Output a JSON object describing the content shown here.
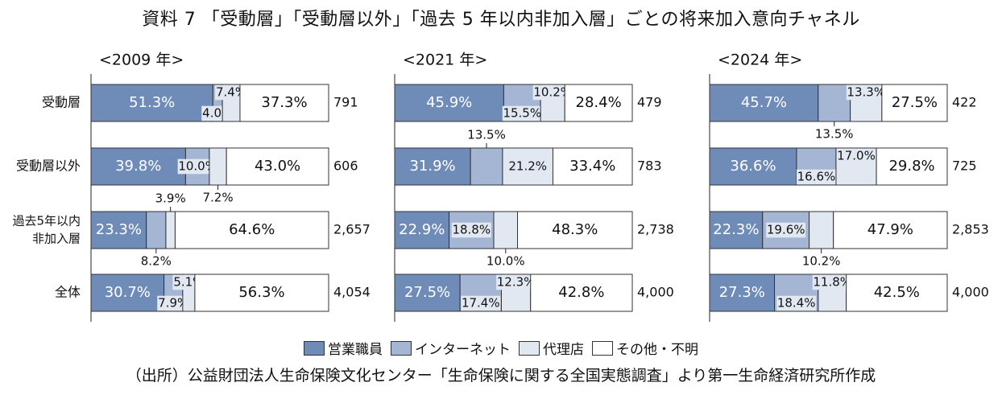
{
  "title": "資料 7 「受動層」「受動層以外」「過去 5 年以内非加入層」ごとの将来加入意向チャネル",
  "source": "（出所）公益財団法人生命保険文化センター「生命保険に関する全国実態調査」より第一生命経済研究所作成",
  "colors": {
    "sales": "#6f8cb8",
    "internet": "#a4b6d3",
    "agency": "#e2e8f2",
    "other": "#ffffff",
    "border": "#333333",
    "label_bg": "#e2e8f2"
  },
  "legend": [
    {
      "name": "営業職員",
      "color": "#6f8cb8"
    },
    {
      "name": "インターネット",
      "color": "#a4b6d3"
    },
    {
      "name": "代理店",
      "color": "#e2e8f2"
    },
    {
      "name": "その他・不明",
      "color": "#ffffff"
    }
  ],
  "row_labels": [
    [
      "受動層"
    ],
    [
      "受動層以外"
    ],
    [
      "過去5年以内",
      "非加入層"
    ],
    [
      "全体"
    ]
  ],
  "chart_data": [
    {
      "type": "bar",
      "stacked": true,
      "orientation": "horizontal",
      "title": "<2009 年>",
      "categories": [
        "受動層",
        "受動層以外",
        "過去5年以内非加入層",
        "全体"
      ],
      "series": [
        {
          "name": "営業職員",
          "values": [
            51.3,
            39.8,
            23.3,
            30.7
          ]
        },
        {
          "name": "インターネット",
          "values": [
            4.0,
            10.0,
            8.2,
            7.9
          ]
        },
        {
          "name": "代理店",
          "values": [
            7.4,
            7.2,
            3.9,
            5.1
          ]
        },
        {
          "name": "その他・不明",
          "values": [
            37.3,
            43.0,
            64.6,
            56.3
          ]
        }
      ],
      "n": [
        "791",
        "606",
        "2,657",
        "4,054"
      ],
      "xlim": [
        0,
        100
      ]
    },
    {
      "type": "bar",
      "stacked": true,
      "orientation": "horizontal",
      "title": "<2021 年>",
      "categories": [
        "受動層",
        "受動層以外",
        "過去5年以内非加入層",
        "全体"
      ],
      "series": [
        {
          "name": "営業職員",
          "values": [
            45.9,
            31.9,
            22.9,
            27.5
          ]
        },
        {
          "name": "インターネット",
          "values": [
            15.5,
            13.5,
            18.8,
            17.4
          ]
        },
        {
          "name": "代理店",
          "values": [
            10.2,
            21.2,
            10.0,
            12.3
          ]
        },
        {
          "name": "その他・不明",
          "values": [
            28.4,
            33.4,
            48.3,
            42.8
          ]
        }
      ],
      "n": [
        "479",
        "783",
        "2,738",
        "4,000"
      ],
      "xlim": [
        0,
        100
      ]
    },
    {
      "type": "bar",
      "stacked": true,
      "orientation": "horizontal",
      "title": "<2024 年>",
      "categories": [
        "受動層",
        "受動層以外",
        "過去5年以内非加入層",
        "全体"
      ],
      "series": [
        {
          "name": "営業職員",
          "values": [
            45.7,
            36.6,
            22.3,
            27.3
          ]
        },
        {
          "name": "インターネット",
          "values": [
            13.5,
            16.6,
            19.6,
            18.4
          ]
        },
        {
          "name": "代理店",
          "values": [
            13.3,
            17.0,
            10.2,
            11.8
          ]
        },
        {
          "name": "その他・不明",
          "values": [
            27.5,
            29.8,
            47.9,
            42.5
          ]
        }
      ],
      "n": [
        "422",
        "725",
        "2,853",
        "4,000"
      ],
      "xlim": [
        0,
        100
      ]
    }
  ],
  "labels": [
    {
      "texts": [
        [
          "51.3%",
          "4.0%",
          "7.4%",
          "37.3%"
        ],
        [
          "39.8%",
          "10.0%",
          "7.2%",
          "43.0%"
        ],
        [
          "23.3%",
          "8.2%",
          "3.9%",
          "64.6%"
        ],
        [
          "30.7%",
          "7.9%",
          "5.1%",
          "56.3%"
        ]
      ]
    },
    {
      "texts": [
        [
          "45.9%",
          "15.5%",
          "10.2%",
          "28.4%"
        ],
        [
          "31.9%",
          "13.5%",
          "21.2%",
          "33.4%"
        ],
        [
          "22.9%",
          "18.8%",
          "10.0%",
          "48.3%"
        ],
        [
          "27.5%",
          "17.4%",
          "12.3%",
          "42.8%"
        ]
      ]
    },
    {
      "texts": [
        [
          "45.7%",
          "13.5%",
          "13.3%",
          "27.5%"
        ],
        [
          "36.6%",
          "16.6%",
          "17.0%",
          "29.8%"
        ],
        [
          "22.3%",
          "19.6%",
          "10.2%",
          "47.9%"
        ],
        [
          "27.3%",
          "18.4%",
          "11.8%",
          "42.5%"
        ]
      ]
    }
  ]
}
